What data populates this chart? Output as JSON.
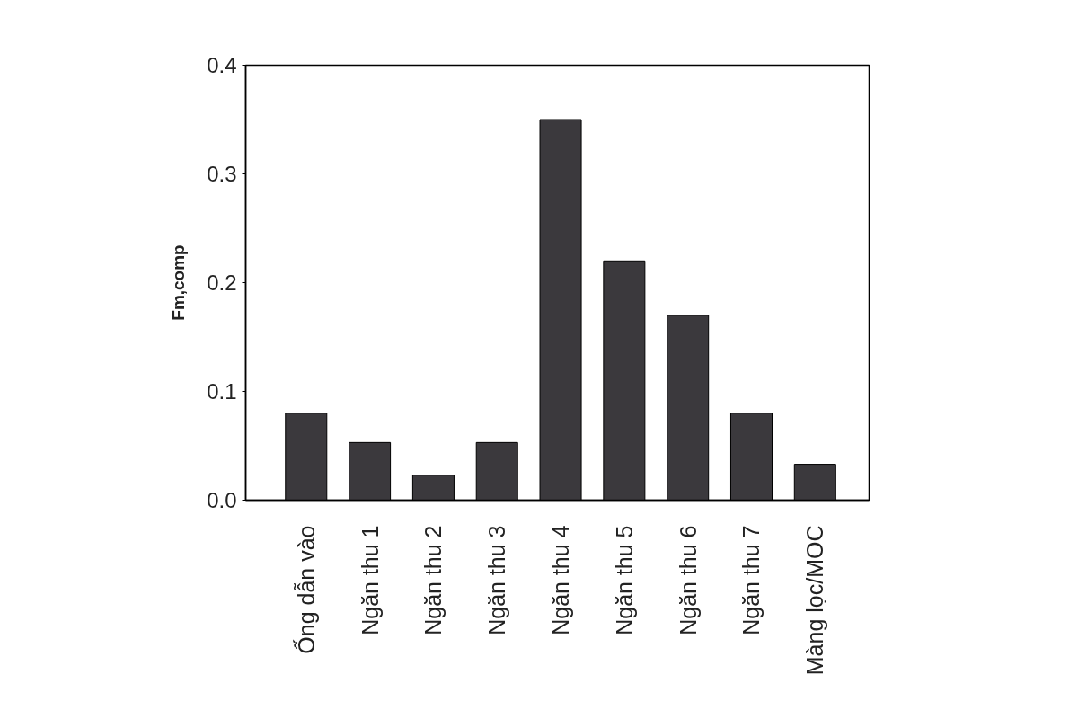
{
  "chart_data": {
    "type": "bar",
    "ylabel": "Fm,comp",
    "categories": [
      "Ống dẫn vào",
      "Ngăn thu 1",
      "Ngăn thu 2",
      "Ngăn thu 3",
      "Ngăn thu 4",
      "Ngăn thu 5",
      "Ngăn thu 6",
      "Ngăn thu 7",
      "Màng lọc/MOC"
    ],
    "values": [
      0.08,
      0.053,
      0.023,
      0.053,
      0.35,
      0.22,
      0.17,
      0.08,
      0.033
    ],
    "color": "#3b393d",
    "ylim": [
      0,
      0.4
    ],
    "yticks": [
      {
        "value": 0,
        "label": "0.0"
      },
      0.1,
      0.2,
      0.3,
      0.4
    ]
  }
}
